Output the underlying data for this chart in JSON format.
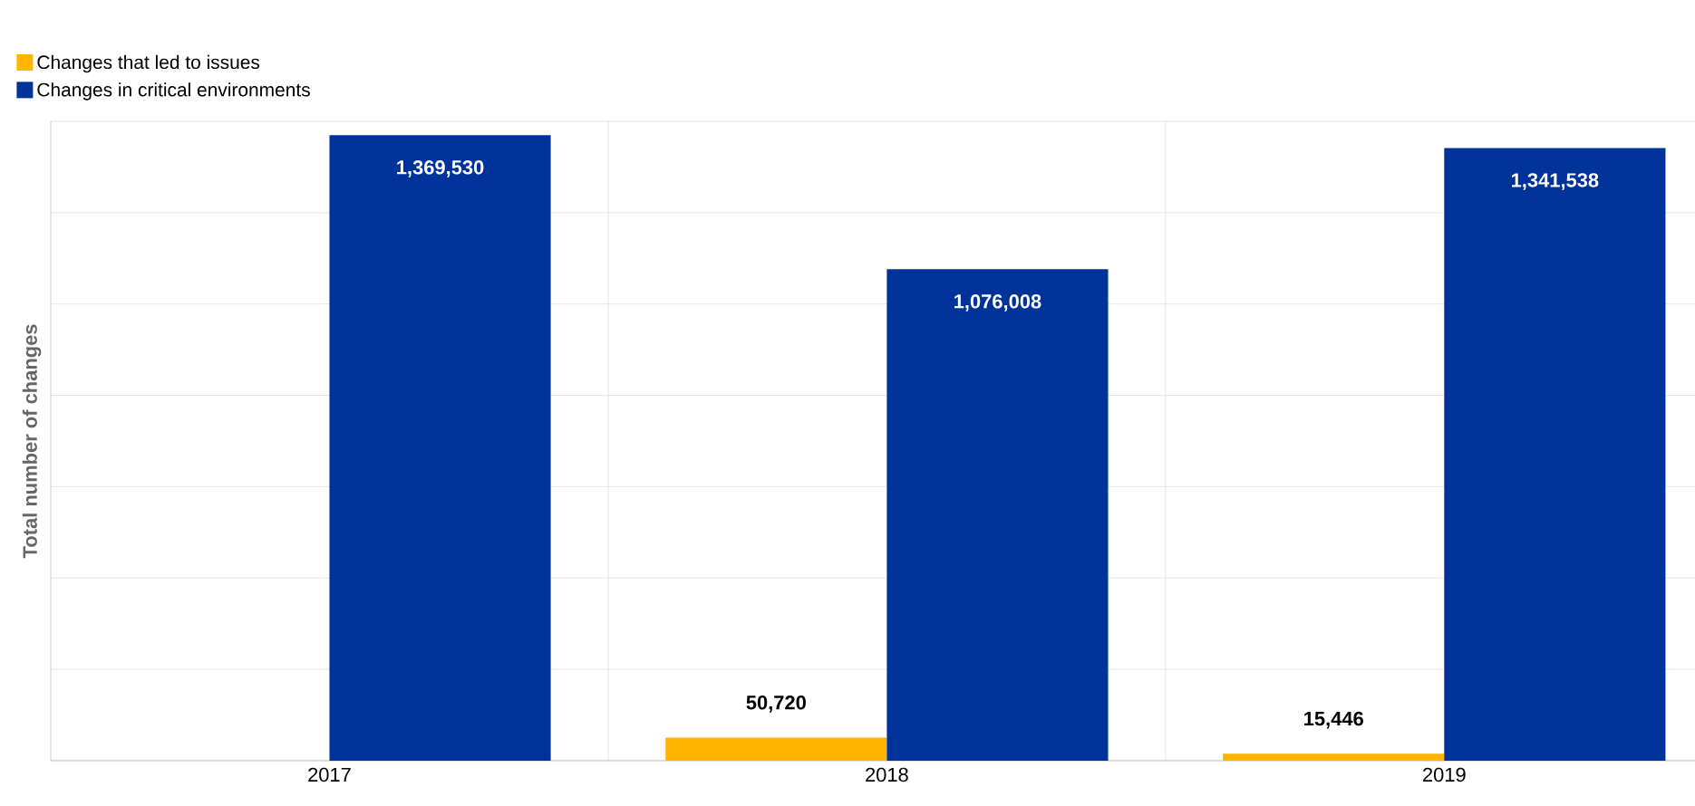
{
  "chart_data": {
    "type": "bar",
    "ylabel": "Total number of changes",
    "categories": [
      "2017",
      "2018",
      "2019"
    ],
    "series": [
      {
        "name": "Changes that led to issues",
        "color": "#ffb400",
        "values": [
          null,
          50720,
          15446
        ],
        "value_labels": [
          null,
          "50,720",
          "15,446"
        ]
      },
      {
        "name": "Changes in critical environments",
        "color": "#003399",
        "values": [
          1369530,
          1076008,
          1341538
        ],
        "value_labels": [
          "1,369,530",
          "1,076,008",
          "1,341,538"
        ]
      }
    ],
    "ylim": [
      0,
      1400000
    ],
    "yticks": [
      {
        "value": 0,
        "label": null
      },
      {
        "value": 200000,
        "label": null
      },
      {
        "value": 400000,
        "label": null
      },
      {
        "value": 600000,
        "label": null
      },
      {
        "value": 800000,
        "label": null
      },
      {
        "value": 1000000,
        "label": null
      },
      {
        "value": 1200000,
        "label": null
      },
      {
        "value": 1400000,
        "label": null
      }
    ],
    "grid": true,
    "legend": "top left"
  }
}
